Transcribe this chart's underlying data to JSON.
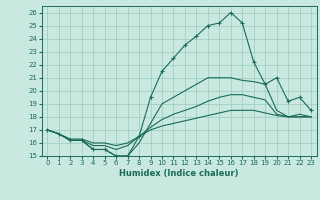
{
  "title": "",
  "xlabel": "Humidex (Indice chaleur)",
  "xlim": [
    -0.5,
    23.5
  ],
  "ylim": [
    15,
    26.5
  ],
  "yticks": [
    15,
    16,
    17,
    18,
    19,
    20,
    21,
    22,
    23,
    24,
    25,
    26
  ],
  "xticks": [
    0,
    1,
    2,
    3,
    4,
    5,
    6,
    7,
    8,
    9,
    10,
    11,
    12,
    13,
    14,
    15,
    16,
    17,
    18,
    19,
    20,
    21,
    22,
    23
  ],
  "background_color": "#c8e8e0",
  "grid_color": "#99ccbb",
  "line_color": "#1a6b5a",
  "lines": [
    {
      "x": [
        0,
        1,
        2,
        3,
        4,
        5,
        6,
        7,
        8,
        9,
        10,
        11,
        12,
        13,
        14,
        15,
        16,
        17,
        18,
        19,
        20,
        21,
        22,
        23
      ],
      "y": [
        17.0,
        16.7,
        16.2,
        16.2,
        15.5,
        15.5,
        15.0,
        15.0,
        16.5,
        19.5,
        21.5,
        22.5,
        23.5,
        24.2,
        25.0,
        25.2,
        26.0,
        25.2,
        22.2,
        20.5,
        21.0,
        19.2,
        19.5,
        18.5
      ],
      "marker": true
    },
    {
      "x": [
        0,
        1,
        2,
        3,
        4,
        5,
        6,
        7,
        8,
        9,
        10,
        11,
        12,
        13,
        14,
        15,
        16,
        17,
        18,
        19,
        20,
        21,
        22,
        23
      ],
      "y": [
        17.0,
        16.7,
        16.2,
        16.2,
        15.5,
        15.5,
        15.0,
        15.0,
        16.0,
        17.5,
        19.0,
        19.5,
        20.0,
        20.5,
        21.0,
        21.0,
        21.0,
        20.8,
        20.7,
        20.5,
        18.5,
        18.0,
        18.2,
        18.0
      ],
      "marker": false
    },
    {
      "x": [
        0,
        1,
        2,
        3,
        4,
        5,
        6,
        7,
        8,
        9,
        10,
        11,
        12,
        13,
        14,
        15,
        16,
        17,
        18,
        19,
        20,
        21,
        22,
        23
      ],
      "y": [
        17.0,
        16.7,
        16.2,
        16.2,
        15.8,
        15.8,
        15.5,
        15.8,
        16.5,
        17.2,
        17.8,
        18.2,
        18.5,
        18.8,
        19.2,
        19.5,
        19.7,
        19.7,
        19.5,
        19.3,
        18.2,
        18.0,
        18.0,
        18.0
      ],
      "marker": false
    },
    {
      "x": [
        0,
        1,
        2,
        3,
        4,
        5,
        6,
        7,
        8,
        9,
        10,
        11,
        12,
        13,
        14,
        15,
        16,
        17,
        18,
        19,
        20,
        21,
        22,
        23
      ],
      "y": [
        17.0,
        16.7,
        16.3,
        16.3,
        16.0,
        16.0,
        15.8,
        16.0,
        16.5,
        17.0,
        17.3,
        17.5,
        17.7,
        17.9,
        18.1,
        18.3,
        18.5,
        18.5,
        18.5,
        18.3,
        18.1,
        18.0,
        18.0,
        18.0
      ],
      "marker": false
    }
  ]
}
